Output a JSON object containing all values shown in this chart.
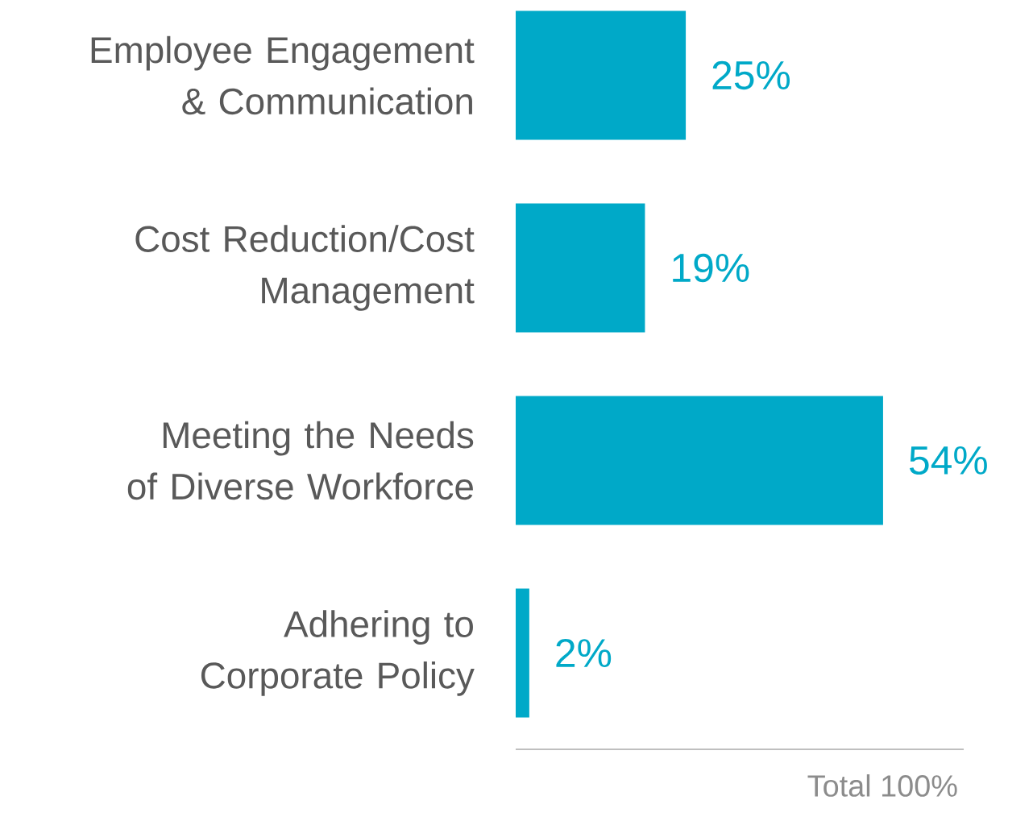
{
  "chart_data": {
    "type": "bar",
    "orientation": "horizontal",
    "categories": [
      "Employee Engagement & Communication",
      "Cost Reduction/Cost Management",
      "Meeting the Needs of Diverse Workforce",
      "Adhering to Corporate Policy"
    ],
    "values": [
      25,
      19,
      54,
      2
    ],
    "value_labels": [
      "25%",
      "19%",
      "54%",
      "2%"
    ],
    "color": "#00a9c8",
    "annotations": [
      "Total 100%"
    ]
  }
}
